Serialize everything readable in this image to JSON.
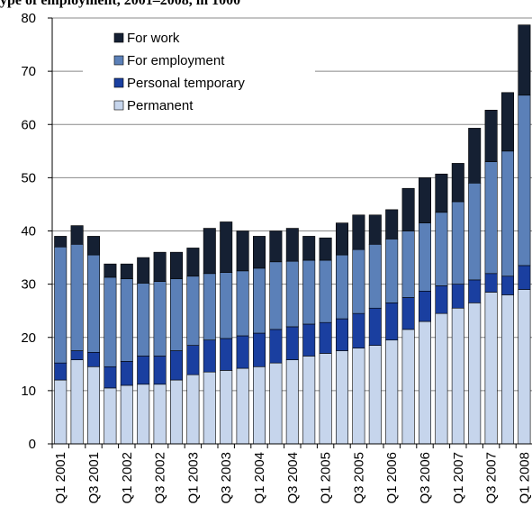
{
  "chart_data": {
    "type": "stacked-bar",
    "title": "ype of employment, 2001–2008, in 1000",
    "categories": [
      "Q1 2001",
      null,
      "Q3 2001",
      null,
      "Q1 2002",
      null,
      "Q3 2002",
      null,
      "Q1 2003",
      null,
      "Q3 2003",
      null,
      "Q1 2004",
      null,
      "Q3 2004",
      null,
      "Q1 2005",
      null,
      "Q3 2005",
      null,
      "Q1 2006",
      null,
      "Q3 2006",
      null,
      "Q1 2007",
      null,
      "Q3 2007",
      null,
      "Q1 2008"
    ],
    "series": [
      {
        "name": "Permanent",
        "color": "#c6d5ec",
        "values": [
          12,
          15.8,
          14.5,
          10.5,
          11,
          11.2,
          11.2,
          12,
          13,
          13.5,
          13.8,
          14.2,
          14.5,
          15.2,
          15.8,
          16.5,
          17,
          17.5,
          18,
          18.5,
          19.5,
          21.5,
          23,
          24.5,
          25.5,
          26.5,
          28.5,
          28,
          29
        ]
      },
      {
        "name": "Personal temporary",
        "color": "#1a3fa0",
        "values": [
          3.2,
          1.7,
          2.7,
          4,
          4.5,
          5.3,
          5.3,
          5.5,
          5.5,
          6,
          6,
          6.1,
          6.3,
          6.3,
          6.2,
          6,
          5.8,
          6,
          6.5,
          7,
          7,
          6,
          5.7,
          5.2,
          4.5,
          4.3,
          3.5,
          3.5,
          4.5
        ]
      },
      {
        "name": "For employment",
        "color": "#5b80b8",
        "values": [
          21.8,
          20,
          18.3,
          16.8,
          15.5,
          13.7,
          14,
          13.5,
          13,
          12.5,
          12.4,
          12.2,
          12.2,
          12.7,
          12.3,
          12,
          11.7,
          12,
          12,
          12,
          12,
          12.5,
          12.8,
          13.8,
          15.5,
          18.2,
          21,
          23.5,
          32
        ]
      },
      {
        "name": "For work",
        "color": "#152033",
        "values": [
          2,
          3.5,
          3.5,
          2.5,
          2.8,
          4.8,
          5.5,
          5,
          5.3,
          8.5,
          9.5,
          7.5,
          6,
          5.8,
          6.2,
          4.5,
          4.2,
          6,
          6.5,
          5.5,
          5.5,
          8,
          8.5,
          7.2,
          7.2,
          10.3,
          9.7,
          11,
          13.2
        ]
      }
    ],
    "ylim": [
      0,
      80
    ],
    "yticks": [
      0,
      10,
      20,
      30,
      40,
      50,
      60,
      70,
      80
    ],
    "grid": true
  }
}
